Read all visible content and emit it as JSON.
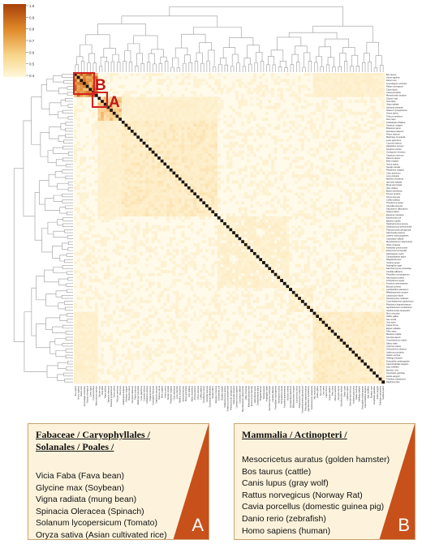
{
  "colorbar": {
    "ticks": [
      "1.0",
      "0.9",
      "0.8",
      "0.7",
      "0.6",
      "0.5",
      "0.4"
    ],
    "colors": {
      "high": "#b84a0a",
      "mid": "#e5932f",
      "low": "#fff3c8"
    }
  },
  "highlight_labels": {
    "a": "A",
    "b": "B"
  },
  "highlight_color": "#d42020",
  "species_labels": [
    "Bos taurus",
    "Homo sapiens",
    "Danio rerio",
    "Oryctolagus cuniculus",
    "Rattus norvegicus",
    "Canis lupus",
    "Cavia porcellus",
    "Mesocricetus auratus",
    "Glycine max",
    "Vicia faba",
    "Vigna radiata",
    "Spinacia oleracea",
    "Solanum lycopersicum",
    "Oryza sativa",
    "Triticum aestivum",
    "Zea mays",
    "Arabidopsis thaliana",
    "Hordeum vulgare",
    "Brassica napus",
    "Nicotiana tabacum",
    "Pisum sativum",
    "Medicago truncatula",
    "Lotus japonicus",
    "Cucumis sativus",
    "Helianthus annuus",
    "Sorghum bicolor",
    "Gossypium hirsutum",
    "Capsicum annuum",
    "Daucus carota",
    "Beta vulgaris",
    "Avena sativa",
    "Secale cereale",
    "Phaseolus vulgaris",
    "Cicer arietinum",
    "Lens culinaris",
    "Manihot esculenta",
    "Ipomoea batatas",
    "Musa acuminata",
    "Vitis vinifera",
    "Malus domestica",
    "Prunus persica",
    "Citrus sinensis",
    "Coffea arabica",
    "Theobroma cacao",
    "Camellia sinensis",
    "Saccharum officinarum",
    "Setaria italica",
    "Eleusine coracana",
    "Escherichia coli",
    "Bacillus subtilis",
    "Staphylococcus aureus",
    "Streptococcus pneumoniae",
    "Pseudomonas aeruginosa",
    "Salmonella enterica",
    "Listeria monocytogenes",
    "Clostridium difficile",
    "Mycobacterium tuberculosis",
    "Vibrio cholerae",
    "Klebsiella pneumoniae",
    "Enterococcus faecalis",
    "Helicobacter pylori",
    "Campylobacter jejuni",
    "Shigella flexneri",
    "Yersinia pestis",
    "Aspergillus niger",
    "Saccharomyces cerevisiae",
    "Candida albicans",
    "Penicillium chrysogenum",
    "Neurospora crassa",
    "Trichoderma reesei",
    "Fusarium graminearum",
    "Botrytis cinerea",
    "Lactobacillus plantarum",
    "Bifidobacterium longum",
    "Lactococcus lactis",
    "Streptomyces coelicolor",
    "Corynebacterium glutamicum",
    "Rhizobium leguminosarum",
    "Agrobacterium tumefaciens",
    "Xanthomonas campestris",
    "Mus musculus",
    "Gallus gallus",
    "Sus scrofa",
    "Ovis aries",
    "Capra hircus",
    "Equus caballus",
    "Felis catus",
    "Macaca mulatta",
    "Xenopus laevis",
    "Oncorhynchus mykiss",
    "Salmo salar",
    "Cyprinus carpio",
    "Oreochromis niloticus",
    "Ictalurus punctatus",
    "Gadus morhua",
    "Takifugu rubripes",
    "Drosophila melanogaster",
    "Caenorhabditis elegans",
    "Apis mellifera",
    "Bombyx mori",
    "Anopheles gambiae",
    "Aedes aegypti",
    "Tribolium castaneum",
    "Daphnia pulex"
  ],
  "panel_a": {
    "title_lines": [
      "Fabaceae / Caryophyllales /",
      "Solanales / Poales /"
    ],
    "items": [
      "Vicia Faba (Fava bean)",
      "Glycine max (Soybean)",
      "Vigna radiata (mung bean)",
      "Spinacia Oleracea (Spinach)",
      "Solanum lycopersicum (Tomato)",
      "Oryza sativa (Asian cultivated rice)"
    ],
    "corner_label": "A"
  },
  "panel_b": {
    "title_lines": [
      "Mammalia / Actinopteri /"
    ],
    "items": [
      "Mesocricetus auratus (golden hamster)",
      "Bos taurus (cattle)",
      "Canis lupus (gray wolf)",
      "Rattus norvegicus (Norway Rat)",
      "Cavia porcellus (domestic guinea pig)",
      "Danio rerio (zebrafish)",
      "Homo sapiens (human)"
    ],
    "corner_label": "B"
  }
}
